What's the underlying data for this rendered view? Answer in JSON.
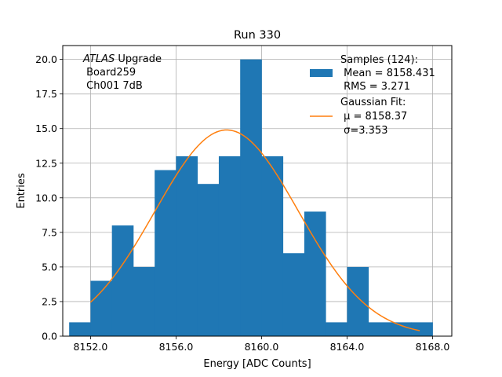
{
  "chart_data": {
    "type": "bar",
    "title": "Run 330",
    "xlabel": "Energy [ADC Counts]",
    "ylabel": "Entries",
    "xlim": [
      8150.7,
      8168.9
    ],
    "ylim": [
      0,
      21
    ],
    "grid": true,
    "x_ticks": [
      8152.0,
      8156.0,
      8160.0,
      8164.0,
      8168.0
    ],
    "x_tick_labels": [
      "8152.0",
      "8156.0",
      "8160.0",
      "8164.0",
      "8168.0"
    ],
    "y_ticks": [
      0,
      2.5,
      5,
      7.5,
      10,
      12.5,
      15,
      17.5,
      20
    ],
    "y_tick_labels": [
      "0.0",
      "2.5",
      "5.0",
      "7.5",
      "10.0",
      "12.5",
      "15.0",
      "17.5",
      "20.0"
    ],
    "histogram": {
      "name": "Samples (124):",
      "bin_edges": [
        8151,
        8152,
        8153,
        8154,
        8155,
        8156,
        8157,
        8158,
        8159,
        8160,
        8161,
        8162,
        8163,
        8164,
        8165,
        8166,
        8167,
        8168
      ],
      "counts": [
        1,
        4,
        8,
        5,
        12,
        13,
        11,
        13,
        20,
        13,
        6,
        9,
        1,
        5,
        1,
        1,
        1
      ],
      "color": "#1f77b4"
    },
    "gaussian_fit": {
      "name": "Gaussian Fit:",
      "amplitude": 14.9,
      "mu": 8158.37,
      "sigma": 3.353,
      "x_range": [
        8152,
        8167.4
      ],
      "color": "#ff7f0e"
    },
    "annotation": {
      "line1_italic": "ATLAS",
      "line1_rest": " Upgrade",
      "line2": " Board259",
      "line3": " Ch001 7dB"
    },
    "legend": {
      "position": "top-right",
      "samples_title": "Samples (124):",
      "samples_mean": " Mean = 8158.431",
      "samples_rms": " RMS = 3.271",
      "fit_title": "Gaussian Fit:",
      "fit_mu": " μ = 8158.37",
      "fit_sigma": " σ=3.353"
    }
  }
}
